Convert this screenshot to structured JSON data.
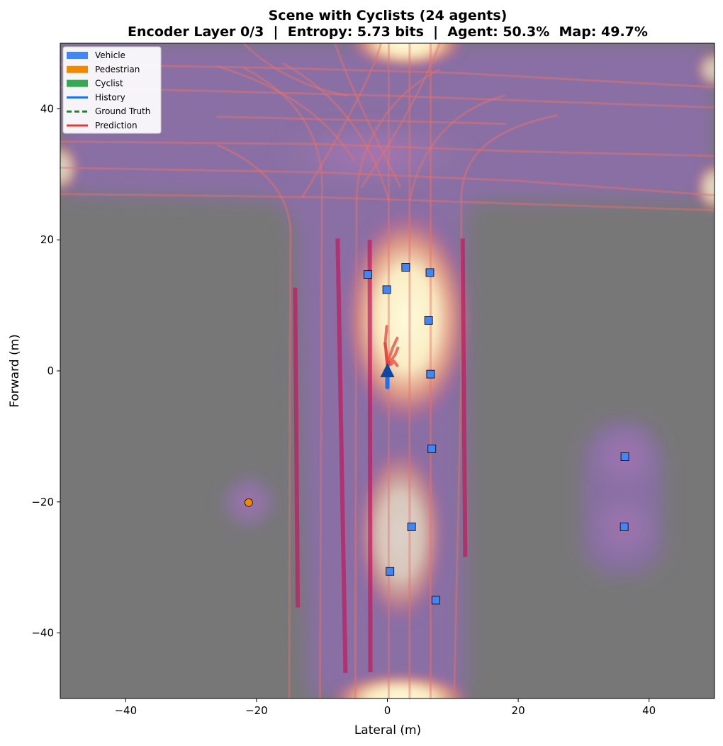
{
  "chart_data": {
    "type": "scatter",
    "title": "Scene with Cyclists (24 agents)",
    "subtitle": "Encoder Layer 0/3  |  Entropy: 5.73 bits  |  Agent: 50.3%  Map: 49.7%",
    "xlabel": "Lateral (m)",
    "ylabel": "Forward (m)",
    "xlim": [
      -50,
      50
    ],
    "ylim": [
      -50,
      50
    ],
    "xticks": [
      -40,
      -20,
      0,
      20,
      40
    ],
    "yticks": [
      -40,
      -20,
      0,
      20,
      40
    ],
    "x_tick_labels": [
      "−40",
      "−20",
      "0",
      "20",
      "40"
    ],
    "y_tick_labels": [
      "−40",
      "−20",
      "0",
      "20",
      "40"
    ],
    "grid": false,
    "legend_position": "top-left",
    "legend": [
      {
        "label": "Vehicle",
        "kind": "patch",
        "color": "#4285f4"
      },
      {
        "label": "Pedestrian",
        "kind": "patch",
        "color": "#f08a00"
      },
      {
        "label": "Cyclist",
        "kind": "patch",
        "color": "#34a853"
      },
      {
        "label": "History",
        "kind": "line",
        "color": "#1a73e8",
        "dash": false
      },
      {
        "label": "Ground Truth",
        "kind": "line",
        "color": "#2e7d32",
        "dash": true
      },
      {
        "label": "Prediction",
        "kind": "line",
        "color": "#e53935",
        "dash": false
      }
    ],
    "colors": {
      "background": "#777777",
      "vehicle": "#4285f4",
      "pedestrian": "#f08a00",
      "ego": "#0d47a1",
      "history": "#1a73e8",
      "prediction": "#e53935",
      "attention_low": "#8a6fa8",
      "attention_high": "#fffbdc"
    },
    "ego": {
      "x": 0,
      "y": 0,
      "heading_deg": 90
    },
    "ego_history": [
      [
        0,
        -2.5
      ],
      [
        0,
        -1.5
      ],
      [
        0,
        -0.8
      ]
    ],
    "predictions": [
      [
        [
          0,
          0.8
        ],
        [
          -0.2,
          2.5
        ],
        [
          -0.3,
          4.5
        ],
        [
          -0.1,
          6.8
        ]
      ],
      [
        [
          0,
          0.8
        ],
        [
          0.3,
          2.0
        ],
        [
          0.8,
          3.5
        ],
        [
          1.5,
          5.0
        ]
      ],
      [
        [
          0,
          0.8
        ],
        [
          0.5,
          1.5
        ],
        [
          1.2,
          2.5
        ],
        [
          1.6,
          3.5
        ]
      ],
      [
        [
          0,
          0.8
        ],
        [
          0.6,
          1.0
        ],
        [
          1.0,
          1.5
        ],
        [
          1.5,
          0.8
        ]
      ],
      [
        [
          0,
          0.8
        ],
        [
          -0.1,
          1.8
        ],
        [
          -0.2,
          3.2
        ],
        [
          -0.4,
          4.2
        ]
      ]
    ],
    "vehicles": [
      [
        -3.0,
        14.7
      ],
      [
        2.8,
        15.8
      ],
      [
        6.5,
        15.0
      ],
      [
        -0.1,
        12.4
      ],
      [
        6.3,
        7.7
      ],
      [
        6.6,
        -0.5
      ],
      [
        6.8,
        -11.9
      ],
      [
        36.3,
        -13.1
      ],
      [
        36.2,
        -23.8
      ],
      [
        3.7,
        -23.8
      ],
      [
        0.4,
        -30.6
      ],
      [
        7.4,
        -35.0
      ]
    ],
    "pedestrians": [
      [
        -21.2,
        -20.1
      ]
    ],
    "attention_blobs": [
      {
        "x": 3,
        "y": 8,
        "rx": 10,
        "ry": 17,
        "w": 1.0
      },
      {
        "x": 2,
        "y": -25,
        "rx": 7,
        "ry": 14,
        "w": 0.55
      },
      {
        "x": 2,
        "y": -50,
        "rx": 11,
        "ry": 4,
        "w": 0.95
      },
      {
        "x": 3,
        "y": 50,
        "rx": 9,
        "ry": 4,
        "w": 0.9
      },
      {
        "x": 36.3,
        "y": -13.1,
        "rx": 6,
        "ry": 6,
        "w": 0.3
      },
      {
        "x": 36.2,
        "y": -23.8,
        "rx": 6,
        "ry": 6,
        "w": 0.3
      },
      {
        "x": -21.2,
        "y": -20.1,
        "rx": 4.5,
        "ry": 4.5,
        "w": 0.25
      },
      {
        "x": -50,
        "y": 31,
        "rx": 3,
        "ry": 4,
        "w": 0.55
      },
      {
        "x": 50,
        "y": 28,
        "rx": 3,
        "ry": 4,
        "w": 0.6
      },
      {
        "x": 50,
        "y": 46,
        "rx": 3,
        "ry": 3,
        "w": 0.5
      },
      {
        "x": -2,
        "y": 33,
        "rx": 16,
        "ry": 6,
        "w": 0.4
      }
    ],
    "attention_regions": [
      [
        [
          -50,
          27
        ],
        [
          -50,
          50
        ],
        [
          50,
          50
        ],
        [
          50,
          26
        ],
        [
          14,
          26
        ],
        [
          12,
          24
        ],
        [
          12,
          -50
        ],
        [
          -12,
          -50
        ],
        [
          -14,
          22
        ],
        [
          -17,
          26
        ]
      ],
      [
        [
          30,
          -12
        ],
        [
          33,
          -8
        ],
        [
          39,
          -8
        ],
        [
          42,
          -12
        ],
        [
          42,
          -28
        ],
        [
          39,
          -31
        ],
        [
          33,
          -31
        ],
        [
          30,
          -28
        ]
      ],
      [
        [
          -25,
          -20
        ],
        [
          -21.2,
          -16
        ],
        [
          -17,
          -20
        ],
        [
          -21.2,
          -24
        ]
      ]
    ],
    "lanes_solid": [
      [
        [
          -14.1,
          12.7
        ],
        [
          -13.7,
          -36.1
        ]
      ],
      [
        [
          -7.6,
          20.2
        ],
        [
          -6.4,
          -46.1
        ]
      ],
      [
        [
          -2.7,
          20.0
        ],
        [
          -2.6,
          -46.0
        ]
      ],
      [
        [
          11.5,
          20.2
        ],
        [
          11.9,
          -28.4
        ]
      ]
    ],
    "lanes_faint": [
      [
        [
          -50,
          46.8
        ],
        [
          -20,
          46.3
        ],
        [
          10,
          45.5
        ],
        [
          50,
          43.3
        ]
      ],
      [
        [
          -50,
          43.3
        ],
        [
          0,
          42.0
        ],
        [
          50,
          40.2
        ]
      ],
      [
        [
          -50,
          35.0
        ],
        [
          -10,
          34.6
        ],
        [
          20,
          33.5
        ],
        [
          50,
          32.8
        ]
      ],
      [
        [
          -50,
          31.0
        ],
        [
          -10,
          30.3
        ],
        [
          20,
          29.0
        ],
        [
          50,
          26.8
        ]
      ],
      [
        [
          -50,
          27.0
        ],
        [
          -10,
          26.5
        ],
        [
          20,
          25.5
        ],
        [
          50,
          24.5
        ]
      ],
      [
        [
          -26,
          38.8
        ],
        [
          18,
          37.7
        ]
      ],
      [
        [
          -10.3,
          -50
        ],
        [
          -10.1,
          0
        ],
        [
          -10.0,
          26.5
        ]
      ],
      [
        [
          -4.9,
          -50
        ],
        [
          -4.8,
          0
        ],
        [
          -4.7,
          26.5
        ]
      ],
      [
        [
          0.2,
          -50
        ],
        [
          0.2,
          0
        ],
        [
          0.2,
          50
        ]
      ],
      [
        [
          3.4,
          -50
        ],
        [
          3.4,
          0
        ],
        [
          3.4,
          50
        ]
      ],
      [
        [
          6.6,
          -50
        ],
        [
          6.6,
          0
        ],
        [
          6.6,
          50
        ]
      ],
      [
        [
          10.2,
          -50
        ],
        [
          11.3,
          0
        ],
        [
          11.3,
          26.5
        ]
      ],
      [
        [
          -15.0,
          -50
        ],
        [
          -14.9,
          0
        ],
        [
          -14.8,
          20
        ]
      ]
    ],
    "curves_faint": [
      [
        [
          -14.8,
          20
        ],
        [
          -14.5,
          26
        ],
        [
          -18,
          31
        ],
        [
          -26,
          34.5
        ]
      ],
      [
        [
          -10.0,
          26.5
        ],
        [
          -9.5,
          36
        ],
        [
          -14,
          42
        ],
        [
          -22,
          46.3
        ]
      ],
      [
        [
          -4.7,
          26.5
        ],
        [
          -4.5,
          34
        ],
        [
          0,
          42
        ],
        [
          8,
          46
        ]
      ],
      [
        [
          11.3,
          26.5
        ],
        [
          11.5,
          33
        ],
        [
          16,
          37
        ],
        [
          26,
          39
        ]
      ],
      [
        [
          -13,
          26.5
        ],
        [
          -6,
          38
        ],
        [
          -2,
          46
        ],
        [
          -1,
          50
        ]
      ],
      [
        [
          -22,
          50
        ],
        [
          -18,
          46
        ],
        [
          -12,
          43
        ],
        [
          -6,
          42
        ]
      ],
      [
        [
          -26,
          46.5
        ],
        [
          -18,
          44
        ],
        [
          -10,
          40
        ],
        [
          -5,
          32
        ]
      ],
      [
        [
          0.2,
          26
        ],
        [
          -2,
          34
        ],
        [
          -7,
          42
        ],
        [
          -16,
          47
        ]
      ],
      [
        [
          3.4,
          26
        ],
        [
          5,
          34
        ],
        [
          10,
          40
        ],
        [
          18,
          42
        ]
      ],
      [
        [
          -8,
          50
        ],
        [
          -6,
          44
        ],
        [
          -2,
          36
        ],
        [
          2,
          28
        ]
      ],
      [
        [
          8,
          50
        ],
        [
          5,
          42
        ],
        [
          0,
          34
        ],
        [
          -4,
          28
        ]
      ]
    ]
  }
}
